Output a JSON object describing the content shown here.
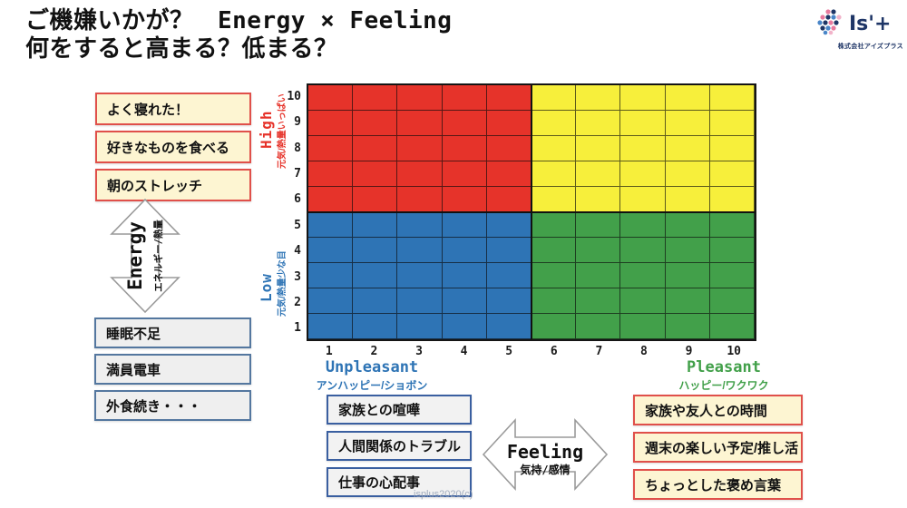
{
  "title": {
    "line1": "ご機嫌いかが？　Energy × Feeling",
    "line2": "何をすると高まる？低まる？"
  },
  "logo": {
    "name": "Is'+",
    "company": "株式会社アイズプラス",
    "mark_colors": [
      "#e87a9e",
      "#1e3566",
      "#4a86c8",
      "#f1b3c9"
    ]
  },
  "energy_axis": {
    "label": "Energy",
    "sublabel": "エネルギー/熱量",
    "high_label": "High",
    "high_sublabel": "元気/熱量いっぱい",
    "high_color": "#e6332a",
    "low_label": "Low",
    "low_sublabel": "元気/熱量少な目",
    "low_color": "#2e74b5"
  },
  "feeling_axis": {
    "label": "Feeling",
    "sublabel": "気持/感情",
    "unpleasant_label": "Unpleasant",
    "unpleasant_sublabel": "アンハッピー/ショボン",
    "unpleasant_color": "#2e74b5",
    "pleasant_label": "Pleasant",
    "pleasant_sublabel": "ハッピー/ワクワク",
    "pleasant_color": "#42a04a"
  },
  "energy_up_items": [
    "よく寝れた！",
    "好きなものを食べる",
    "朝のストレッチ"
  ],
  "energy_down_items": [
    "睡眠不足",
    "満員電車",
    "外食続き・・・"
  ],
  "feeling_down_items": [
    "家族との喧嘩",
    "人間関係のトラブル",
    "仕事の心配事"
  ],
  "feeling_up_items": [
    "家族や友人との時間",
    "週末の楽しい予定/推し活",
    "ちょっとした褒め言葉"
  ],
  "watermark": "isplus2020(c)",
  "chart_data": {
    "type": "heatmap",
    "title": "Energy × Feeling mood grid",
    "xlabel_low": "Unpleasant",
    "xlabel_high": "Pleasant",
    "ylabel_low": "Low",
    "ylabel_high": "High",
    "x_ticks": [
      1,
      2,
      3,
      4,
      5,
      6,
      7,
      8,
      9,
      10
    ],
    "y_ticks": [
      10,
      9,
      8,
      7,
      6,
      5,
      4,
      3,
      2,
      1
    ],
    "x_range": [
      1,
      10
    ],
    "y_range": [
      1,
      10
    ],
    "grid": true,
    "rows": 10,
    "cols": 10,
    "quadrants": [
      {
        "name": "high-energy-unpleasant",
        "x_range": [
          1,
          5
        ],
        "y_range": [
          6,
          10
        ],
        "color": "#e6332a"
      },
      {
        "name": "high-energy-pleasant",
        "x_range": [
          6,
          10
        ],
        "y_range": [
          6,
          10
        ],
        "color": "#f7ef3b"
      },
      {
        "name": "low-energy-unpleasant",
        "x_range": [
          1,
          5
        ],
        "y_range": [
          1,
          5
        ],
        "color": "#2e74b5"
      },
      {
        "name": "low-energy-pleasant",
        "x_range": [
          6,
          10
        ],
        "y_range": [
          1,
          5
        ],
        "color": "#42a04a"
      }
    ]
  }
}
